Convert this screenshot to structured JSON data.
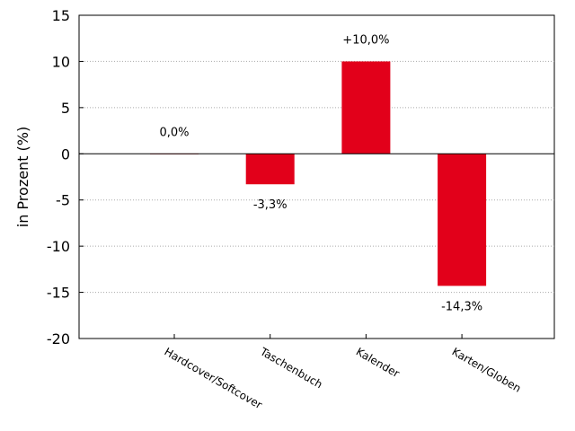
{
  "chart_data": {
    "type": "bar",
    "categories": [
      "Hardcover/Softcover",
      "Taschenbuch",
      "Kalender",
      "Karten/Globen"
    ],
    "values": [
      0.0,
      -3.3,
      10.0,
      -14.3
    ],
    "value_labels": [
      "0,0%",
      "-3,3%",
      "+10,0%",
      "-14,3%"
    ],
    "ylabel": "in Prozent (%)",
    "ylim": [
      -20,
      15
    ],
    "yticks": [
      15,
      10,
      5,
      0,
      -5,
      -10,
      -15,
      -20
    ],
    "ytick_labels": [
      "15",
      "10",
      "5",
      "0",
      "-5",
      "-10",
      "-15",
      "-20"
    ],
    "grid": "horizontal dotted",
    "bar_color": "#e2001a",
    "zero_line_color": "#000000",
    "grid_color": "#aaaaaa"
  }
}
